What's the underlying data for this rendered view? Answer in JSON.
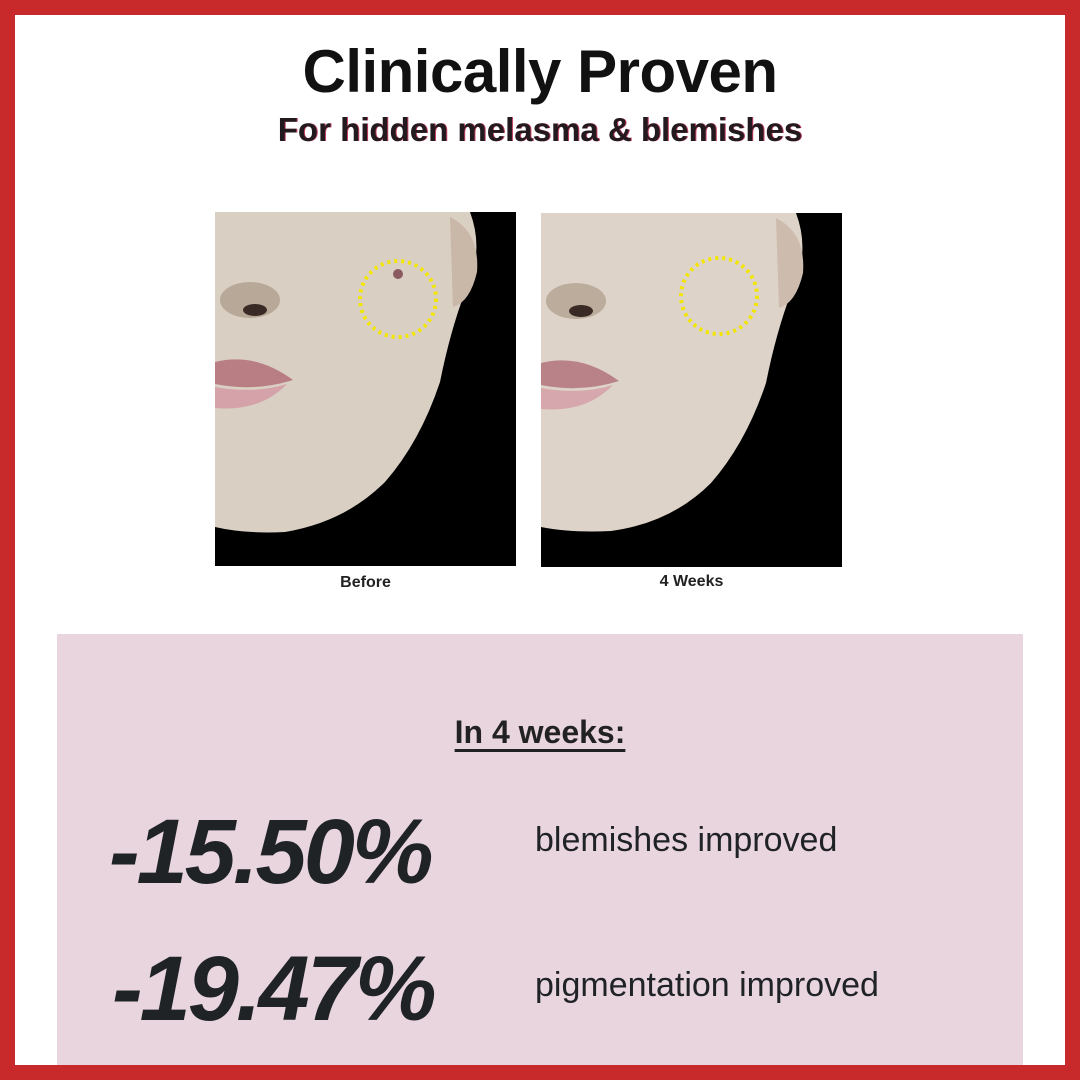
{
  "title": "Clinically Proven",
  "subtitle": "For hidden melasma & blemishes",
  "photos": [
    {
      "caption": "Before"
    },
    {
      "caption": "4 Weeks"
    }
  ],
  "results": {
    "heading": "In 4 weeks:",
    "items": [
      {
        "value": "-15.50%",
        "label": "blemishes improved"
      },
      {
        "value": "-19.47%",
        "label": "pigmentation improved"
      }
    ]
  },
  "colors": {
    "border": "#c8292b",
    "panel": "#e9d5de",
    "highlight_circle": "#f2e600"
  }
}
